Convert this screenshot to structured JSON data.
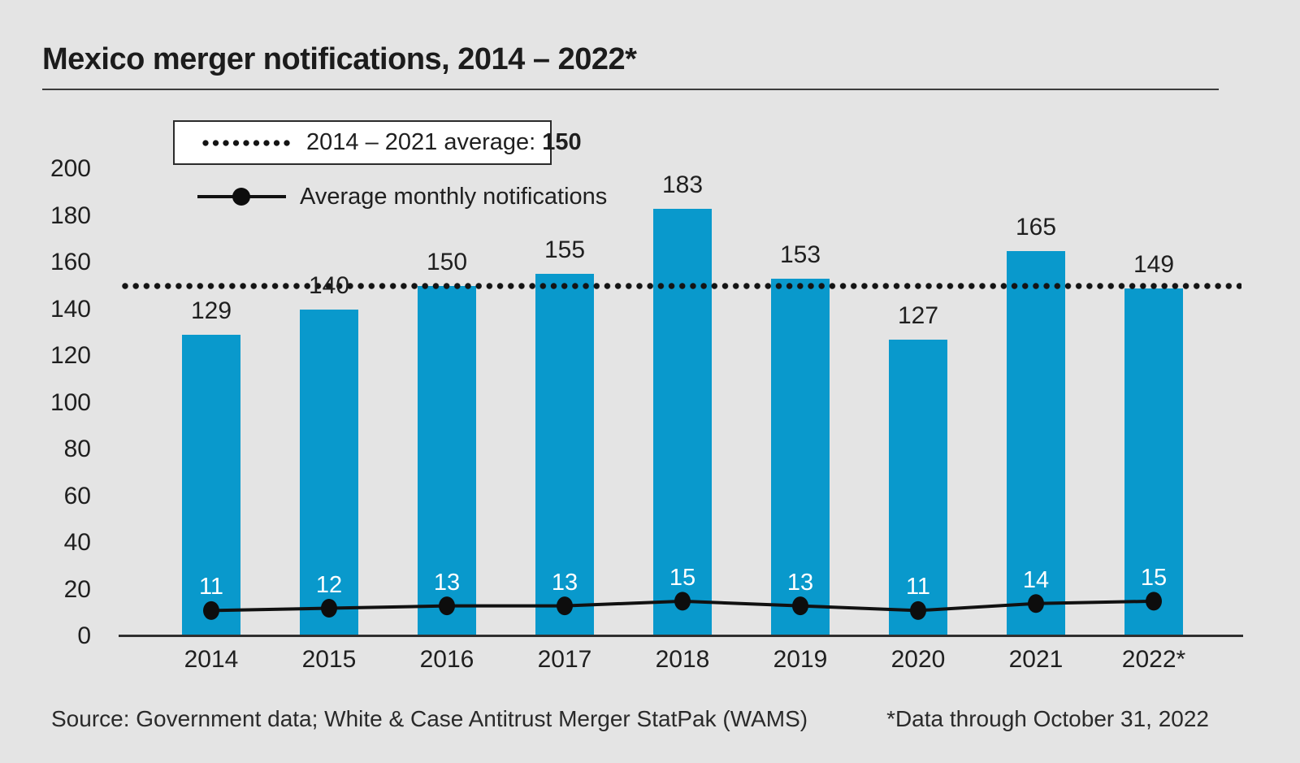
{
  "title": "Mexico merger notifications, 2014 – 2022*",
  "legend": {
    "average_prefix": "2014 – 2021 average:",
    "average_value": "150",
    "monthly_label": "Average monthly notifications"
  },
  "footer": {
    "source": "Source: Government data; White & Case Antitrust Merger StatPak (WAMS)",
    "note": "*Data through October 31, 2022"
  },
  "colors": {
    "background": "#e4e4e4",
    "bar": "#0999cc",
    "line": "#111111",
    "marker": "#0d0d0d",
    "text": "#1f1f1f",
    "axis": "#2f2f2f",
    "inside_bar_label": "#ffffff"
  },
  "chart_data": {
    "type": "bar",
    "title": "Mexico merger notifications, 2014 – 2022*",
    "categories": [
      "2014",
      "2015",
      "2016",
      "2017",
      "2018",
      "2019",
      "2020",
      "2021",
      "2022*"
    ],
    "series": [
      {
        "name": "Merger notifications",
        "type": "bar",
        "values": [
          129,
          140,
          150,
          155,
          183,
          153,
          127,
          165,
          149
        ]
      },
      {
        "name": "Average monthly notifications",
        "type": "line",
        "values": [
          11,
          12,
          13,
          13,
          15,
          13,
          11,
          14,
          15
        ]
      }
    ],
    "reference_line": {
      "label": "2014 – 2021 average",
      "value": 150,
      "style": "dotted"
    },
    "xlabel": "",
    "ylabel": "",
    "ylim": [
      0,
      200
    ],
    "yticks": [
      0,
      20,
      40,
      60,
      80,
      100,
      120,
      140,
      160,
      180,
      200
    ],
    "grid": false,
    "legend_position": "top-left"
  }
}
